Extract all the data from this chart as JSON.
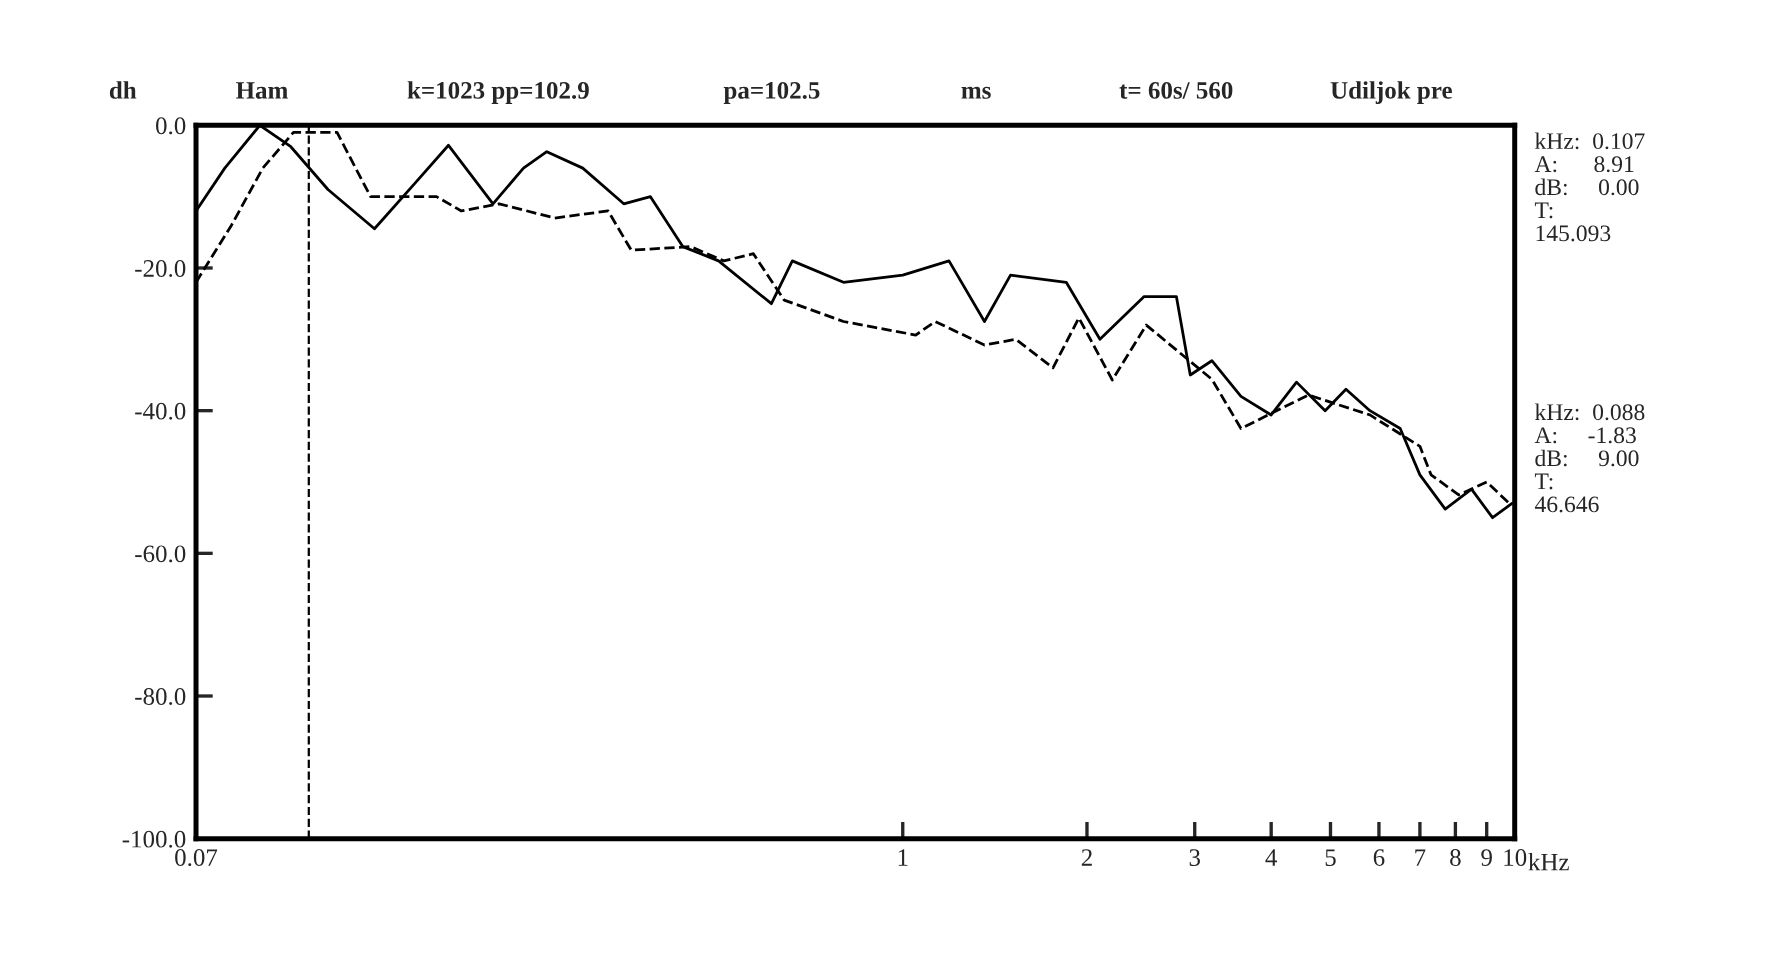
{
  "chart_data": {
    "type": "line",
    "ylabel": "dh",
    "xlabel": "kHz",
    "annotations": [
      "Ham",
      "k=1023 pp=102.9",
      "pa=102.5",
      "ms",
      "t= 60s/ 560",
      "Udiljok pre",
      "kHz:  0.107\nA:      8.91\ndB:     0.00\nT:\n145.093",
      "kHz:  0.088\nA:     -1.83\ndB:     9.00\nT:\n46.646"
    ],
    "log": "x",
    "xlim": [
      0.07,
      10
    ],
    "ylim": [
      -100,
      0
    ],
    "xticks": [
      {
        "value": 0.07,
        "label": "0.07"
      },
      1,
      2,
      3,
      4,
      5,
      6,
      7,
      8,
      9,
      10
    ],
    "yticks": [
      {
        "value": 0,
        "label": "0.0"
      },
      {
        "value": -20,
        "label": "-20.0"
      },
      {
        "value": -40,
        "label": "-40.0"
      },
      {
        "value": -60,
        "label": "-60.0"
      },
      {
        "value": -80,
        "label": "-80.0"
      },
      {
        "value": -100,
        "label": "-100.0"
      }
    ],
    "grid": false,
    "legend": false,
    "ref_lines": [
      {
        "axis": "x",
        "value": 0.107,
        "line_style": "dashed",
        "color": "#000000"
      }
    ],
    "series": [
      {
        "color": "#000000",
        "line_style": "solid",
        "x": [
          0.07,
          0.078,
          0.089,
          0.1,
          0.115,
          0.137,
          0.16,
          0.181,
          0.214,
          0.24,
          0.262,
          0.3,
          0.35,
          0.387,
          0.437,
          0.5,
          0.61,
          0.66,
          0.8,
          1.0,
          1.19,
          1.36,
          1.5,
          1.85,
          2.1,
          2.48,
          2.8,
          2.95,
          3.2,
          3.57,
          4.0,
          4.4,
          4.9,
          5.3,
          5.8,
          6.5,
          7.0,
          7.7,
          8.5,
          9.2,
          9.9
        ],
        "values": [
          -12,
          -6,
          0,
          -3,
          -9,
          -14.5,
          -8,
          -2.8,
          -11,
          -6,
          -3.7,
          -6,
          -11,
          -10,
          -17,
          -19,
          -25,
          -19,
          -22,
          -21,
          -19,
          -27.5,
          -21,
          -22,
          -30,
          -24,
          -24,
          -35,
          -33,
          -38,
          -40.6,
          -36,
          -40,
          -37,
          -40,
          -42.5,
          -49,
          -53.8,
          -51,
          -55,
          -53
        ]
      },
      {
        "color": "#000000",
        "line_style": "dashed",
        "x": [
          0.07,
          0.08,
          0.09,
          0.101,
          0.119,
          0.135,
          0.173,
          0.19,
          0.219,
          0.27,
          0.33,
          0.36,
          0.45,
          0.51,
          0.57,
          0.64,
          0.8,
          1.05,
          1.13,
          1.36,
          1.53,
          1.76,
          1.94,
          2.2,
          2.5,
          3.2,
          3.57,
          4.6,
          5.8,
          7.0,
          7.3,
          8.1,
          9.0,
          9.8
        ],
        "values": [
          -22,
          -14,
          -6,
          -1,
          -1,
          -10,
          -10,
          -12,
          -11,
          -13,
          -12,
          -17.5,
          -17,
          -19,
          -18,
          -24.5,
          -27.5,
          -29.4,
          -27.5,
          -30.8,
          -30,
          -34,
          -27,
          -35.7,
          -28,
          -35.6,
          -42.5,
          -37.8,
          -40.6,
          -45,
          -49,
          -51.8,
          -50,
          -53
        ]
      }
    ]
  }
}
